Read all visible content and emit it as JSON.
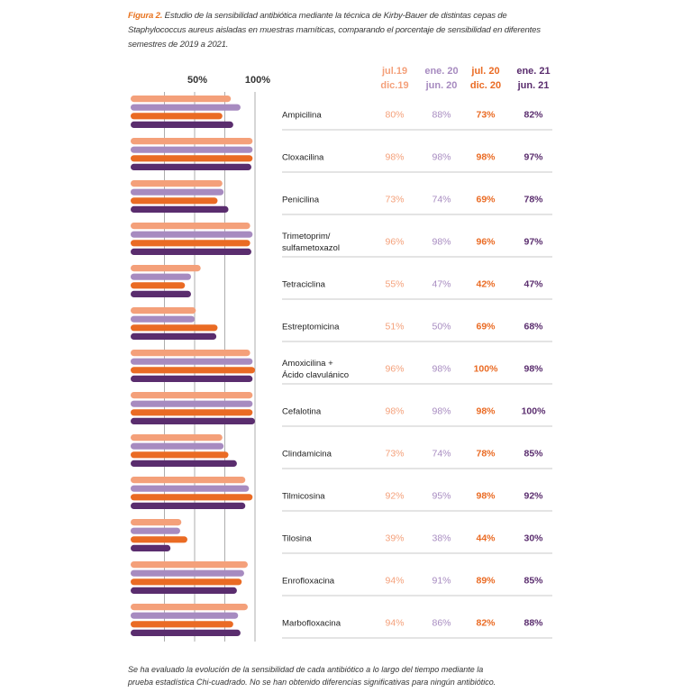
{
  "caption": {
    "figure_label": "Figura 2.",
    "text": "Estudio de la sensibilidad antibiótica mediante la técnica de Kirby-Bauer de distintas cepas de Staphylococcus aureus aisladas en muestras mamíticas, comparando el porcentaje de sensibilidad en diferentes semestres de 2019 a 2021."
  },
  "footnote": {
    "line1": "Se ha evaluado la evolución de la sensibilidad de cada antibiótico a lo largo del tiempo mediante la",
    "line2": "prueba estadística Chi-cuadrado. No se han obtenido diferencias significativas para ningún antibiótico."
  },
  "colors": {
    "s1": "#f4a07a",
    "s2": "#a78bc0",
    "s3": "#ea6b24",
    "s4": "#5a2d6e",
    "grid": "#9a9a9a",
    "rule": "#c8c8c8"
  },
  "chart_data": {
    "type": "bar",
    "orientation": "horizontal",
    "x_ticks": [
      "50%",
      "100%"
    ],
    "xlim": [
      0,
      100
    ],
    "series": [
      {
        "header_line1": "jul.19",
        "header_line2": "dic.19",
        "values": [
          80,
          98,
          73,
          96,
          55,
          51,
          96,
          98,
          73,
          92,
          39,
          94,
          94
        ]
      },
      {
        "header_line1": "ene. 20",
        "header_line2": "jun. 20",
        "values": [
          88,
          98,
          74,
          98,
          47,
          50,
          98,
          98,
          74,
          95,
          38,
          91,
          86
        ]
      },
      {
        "header_line1": "jul. 20",
        "header_line2": "dic. 20",
        "values": [
          73,
          98,
          69,
          96,
          42,
          69,
          100,
          98,
          78,
          98,
          44,
          89,
          82
        ]
      },
      {
        "header_line1": "ene. 21",
        "header_line2": "jun. 21",
        "values": [
          82,
          97,
          78,
          97,
          47,
          68,
          98,
          100,
          85,
          92,
          30,
          85,
          88
        ]
      }
    ],
    "categories": [
      [
        "Ampicilina"
      ],
      [
        "Cloxacilina"
      ],
      [
        "Penicilina"
      ],
      [
        "Trimetoprim/",
        "sulfametoxazol"
      ],
      [
        "Tetraciclina"
      ],
      [
        "Estreptomicina"
      ],
      [
        "Amoxicilina +",
        "Ácido clavulánico"
      ],
      [
        "Cefalotina"
      ],
      [
        "Clindamicina"
      ],
      [
        "Tilmicosina"
      ],
      [
        "Tilosina"
      ],
      [
        "Enrofloxacina"
      ],
      [
        "Marbofloxacina"
      ]
    ],
    "value_labels": [
      [
        "80%",
        "88%",
        "73%",
        "82%"
      ],
      [
        "98%",
        "98%",
        "98%",
        "97%"
      ],
      [
        "73%",
        "74%",
        "69%",
        "78%"
      ],
      [
        "96%",
        "98%",
        "96%",
        "97%"
      ],
      [
        "55%",
        "47%",
        "42%",
        "47%"
      ],
      [
        "51%",
        "50%",
        "69%",
        "68%"
      ],
      [
        "96%",
        "98%",
        "100%",
        "98%"
      ],
      [
        "98%",
        "98%",
        "98%",
        "100%"
      ],
      [
        "73%",
        "74%",
        "78%",
        "85%"
      ],
      [
        "92%",
        "95%",
        "98%",
        "92%"
      ],
      [
        "39%",
        "38%",
        "44%",
        "30%"
      ],
      [
        "94%",
        "91%",
        "89%",
        "85%"
      ],
      [
        "94%",
        "86%",
        "82%",
        "88%"
      ]
    ]
  }
}
